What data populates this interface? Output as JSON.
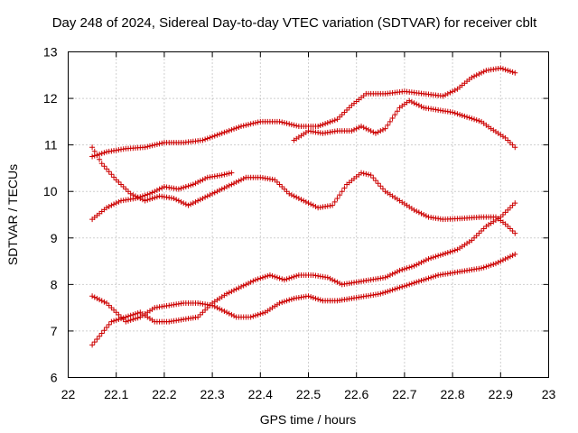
{
  "chart_data": {
    "type": "scatter",
    "title": "Day 248 of 2024, Sidereal Day-to-day VTEC variation (SDTVAR) for receiver cblt",
    "xlabel": "GPS time / hours",
    "ylabel": "SDTVAR / TECUs",
    "xlim": [
      22,
      23
    ],
    "ylim": [
      6,
      13
    ],
    "xticks": [
      "22",
      "22.1",
      "22.2",
      "22.3",
      "22.4",
      "22.5",
      "22.6",
      "22.7",
      "22.8",
      "22.9",
      "23"
    ],
    "yticks": [
      "6",
      "7",
      "8",
      "9",
      "10",
      "11",
      "12",
      "13"
    ],
    "grid": true,
    "marker": "+",
    "color": "#cc0000",
    "series": [
      {
        "name": "trace-1",
        "points": [
          [
            22.05,
            10.95
          ],
          [
            22.07,
            10.6
          ],
          [
            22.1,
            10.25
          ],
          [
            22.13,
            9.95
          ],
          [
            22.16,
            9.8
          ],
          [
            22.19,
            9.9
          ],
          [
            22.22,
            9.85
          ],
          [
            22.25,
            9.7
          ],
          [
            22.28,
            9.85
          ],
          [
            22.31,
            10.0
          ],
          [
            22.34,
            10.15
          ],
          [
            22.37,
            10.3
          ],
          [
            22.4,
            10.3
          ],
          [
            22.43,
            10.25
          ],
          [
            22.46,
            9.95
          ],
          [
            22.49,
            9.8
          ],
          [
            22.52,
            9.65
          ],
          [
            22.55,
            9.7
          ],
          [
            22.58,
            10.15
          ],
          [
            22.61,
            10.4
          ],
          [
            22.63,
            10.35
          ],
          [
            22.66,
            10.0
          ],
          [
            22.69,
            9.8
          ],
          [
            22.72,
            9.6
          ],
          [
            22.75,
            9.45
          ],
          [
            22.78,
            9.4
          ],
          [
            22.82,
            9.42
          ],
          [
            22.86,
            9.45
          ],
          [
            22.89,
            9.45
          ],
          [
            22.91,
            9.3
          ],
          [
            22.93,
            9.1
          ]
        ]
      },
      {
        "name": "trace-2",
        "points": [
          [
            22.05,
            10.75
          ],
          [
            22.08,
            10.85
          ],
          [
            22.12,
            10.92
          ],
          [
            22.16,
            10.95
          ],
          [
            22.2,
            11.05
          ],
          [
            22.24,
            11.05
          ],
          [
            22.28,
            11.1
          ],
          [
            22.32,
            11.25
          ],
          [
            22.36,
            11.4
          ],
          [
            22.4,
            11.5
          ],
          [
            22.44,
            11.5
          ],
          [
            22.48,
            11.4
          ],
          [
            22.52,
            11.4
          ],
          [
            22.56,
            11.55
          ],
          [
            22.59,
            11.85
          ],
          [
            22.62,
            12.1
          ],
          [
            22.66,
            12.1
          ],
          [
            22.7,
            12.15
          ],
          [
            22.74,
            12.1
          ],
          [
            22.78,
            12.05
          ],
          [
            22.81,
            12.2
          ],
          [
            22.84,
            12.45
          ],
          [
            22.87,
            12.6
          ],
          [
            22.9,
            12.65
          ],
          [
            22.93,
            12.55
          ]
        ]
      },
      {
        "name": "trace-3",
        "points": [
          [
            22.05,
            9.4
          ],
          [
            22.08,
            9.65
          ],
          [
            22.11,
            9.8
          ],
          [
            22.14,
            9.85
          ],
          [
            22.17,
            9.95
          ],
          [
            22.2,
            10.1
          ],
          [
            22.23,
            10.05
          ],
          [
            22.26,
            10.15
          ],
          [
            22.29,
            10.3
          ],
          [
            22.32,
            10.35
          ],
          [
            22.34,
            10.4
          ]
        ]
      },
      {
        "name": "trace-4",
        "points": [
          [
            22.47,
            11.1
          ],
          [
            22.5,
            11.3
          ],
          [
            22.53,
            11.25
          ],
          [
            22.56,
            11.3
          ],
          [
            22.59,
            11.3
          ],
          [
            22.61,
            11.4
          ],
          [
            22.64,
            11.25
          ],
          [
            22.66,
            11.35
          ],
          [
            22.69,
            11.8
          ],
          [
            22.71,
            11.95
          ],
          [
            22.74,
            11.8
          ],
          [
            22.77,
            11.75
          ],
          [
            22.8,
            11.7
          ],
          [
            22.83,
            11.6
          ],
          [
            22.86,
            11.5
          ],
          [
            22.88,
            11.35
          ],
          [
            22.91,
            11.15
          ],
          [
            22.93,
            10.95
          ]
        ]
      },
      {
        "name": "trace-5",
        "points": [
          [
            22.05,
            7.75
          ],
          [
            22.08,
            7.6
          ],
          [
            22.1,
            7.4
          ],
          [
            22.12,
            7.2
          ],
          [
            22.15,
            7.3
          ],
          [
            22.18,
            7.5
          ],
          [
            22.21,
            7.55
          ],
          [
            22.24,
            7.6
          ],
          [
            22.27,
            7.6
          ],
          [
            22.3,
            7.55
          ],
          [
            22.32,
            7.45
          ],
          [
            22.35,
            7.3
          ],
          [
            22.38,
            7.3
          ],
          [
            22.41,
            7.4
          ],
          [
            22.44,
            7.6
          ],
          [
            22.47,
            7.7
          ],
          [
            22.5,
            7.75
          ],
          [
            22.53,
            7.65
          ],
          [
            22.56,
            7.65
          ],
          [
            22.59,
            7.7
          ],
          [
            22.62,
            7.75
          ],
          [
            22.65,
            7.8
          ],
          [
            22.68,
            7.9
          ],
          [
            22.71,
            8.0
          ],
          [
            22.74,
            8.1
          ],
          [
            22.77,
            8.2
          ],
          [
            22.8,
            8.25
          ],
          [
            22.83,
            8.3
          ],
          [
            22.86,
            8.35
          ],
          [
            22.89,
            8.45
          ],
          [
            22.91,
            8.55
          ],
          [
            22.93,
            8.65
          ]
        ]
      },
      {
        "name": "trace-6",
        "points": [
          [
            22.05,
            6.7
          ],
          [
            22.07,
            6.95
          ],
          [
            22.09,
            7.2
          ],
          [
            22.12,
            7.3
          ],
          [
            22.15,
            7.4
          ],
          [
            22.18,
            7.2
          ],
          [
            22.21,
            7.2
          ],
          [
            22.24,
            7.25
          ],
          [
            22.27,
            7.3
          ],
          [
            22.3,
            7.6
          ],
          [
            22.33,
            7.8
          ],
          [
            22.36,
            7.95
          ],
          [
            22.39,
            8.1
          ],
          [
            22.42,
            8.2
          ],
          [
            22.45,
            8.1
          ],
          [
            22.48,
            8.2
          ],
          [
            22.51,
            8.2
          ],
          [
            22.54,
            8.15
          ],
          [
            22.57,
            8.0
          ],
          [
            22.6,
            8.05
          ],
          [
            22.63,
            8.1
          ],
          [
            22.66,
            8.15
          ],
          [
            22.69,
            8.3
          ],
          [
            22.72,
            8.4
          ],
          [
            22.75,
            8.55
          ],
          [
            22.78,
            8.65
          ],
          [
            22.81,
            8.75
          ],
          [
            22.84,
            8.95
          ],
          [
            22.87,
            9.25
          ],
          [
            22.9,
            9.45
          ],
          [
            22.92,
            9.65
          ],
          [
            22.93,
            9.75
          ]
        ]
      }
    ]
  }
}
